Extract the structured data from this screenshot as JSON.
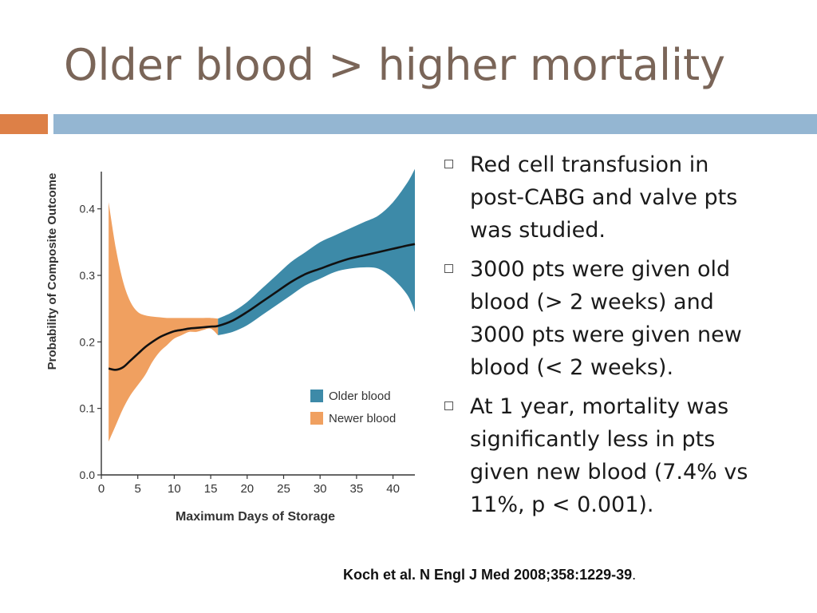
{
  "slide": {
    "title": "Older blood > higher mortality",
    "bullets": [
      "Red cell transfusion in post-CABG and valve pts was studied.",
      "3000 pts were given old blood (> 2 weeks) and 3000 pts were given new blood (< 2 weeks).",
      "At 1 year, mortality was significantly less in pts given new blood (7.4% vs 11%, p < 0.001)."
    ],
    "citation": "Koch et al. N Engl J Med 2008;358:1229-39",
    "citation_end": "."
  },
  "colors": {
    "title": "#7a6558",
    "accent_orange": "#dd8047",
    "accent_blue": "#94b6d2",
    "older_blood": "#3d8aa8",
    "newer_blood": "#f0a060"
  },
  "chart_data": {
    "type": "area",
    "xlabel": "Maximum Days of Storage",
    "ylabel": "Probability of Composite Outcome",
    "xlim": [
      0,
      43
    ],
    "ylim": [
      0,
      0.45
    ],
    "xticks": [
      0,
      5,
      10,
      15,
      20,
      25,
      30,
      35,
      40
    ],
    "yticks": [
      0.0,
      0.1,
      0.2,
      0.3,
      0.4
    ],
    "ytick_labels": [
      "0.0",
      "0.1",
      "0.2",
      "0.3",
      "0.4"
    ],
    "grid": false,
    "legend_position": "bottom-right",
    "series": [
      {
        "name": "Newer blood",
        "color": "#f0a060",
        "x": [
          1,
          2,
          3,
          4,
          5,
          6,
          7,
          8,
          9,
          10,
          11,
          12,
          13,
          14,
          15,
          16
        ],
        "lower": [
          0.05,
          0.075,
          0.1,
          0.12,
          0.135,
          0.15,
          0.17,
          0.185,
          0.195,
          0.205,
          0.21,
          0.215,
          0.215,
          0.218,
          0.22,
          0.21
        ],
        "upper": [
          0.41,
          0.34,
          0.29,
          0.26,
          0.245,
          0.24,
          0.238,
          0.237,
          0.236,
          0.236,
          0.236,
          0.236,
          0.236,
          0.236,
          0.236,
          0.235
        ]
      },
      {
        "name": "Older blood",
        "color": "#3d8aa8",
        "x": [
          16,
          18,
          20,
          22,
          24,
          26,
          28,
          30,
          32,
          34,
          36,
          38,
          40,
          42,
          43
        ],
        "lower": [
          0.21,
          0.215,
          0.225,
          0.24,
          0.255,
          0.27,
          0.285,
          0.295,
          0.305,
          0.31,
          0.312,
          0.31,
          0.295,
          0.27,
          0.245
        ],
        "upper": [
          0.235,
          0.245,
          0.26,
          0.28,
          0.3,
          0.32,
          0.335,
          0.35,
          0.36,
          0.37,
          0.38,
          0.39,
          0.41,
          0.44,
          0.46
        ]
      }
    ],
    "estimate_line": {
      "x": [
        1,
        2,
        3,
        4,
        5,
        6,
        7,
        8,
        9,
        10,
        11,
        12,
        13,
        14,
        15,
        16,
        18,
        20,
        22,
        24,
        26,
        28,
        30,
        32,
        34,
        36,
        38,
        40,
        42,
        43
      ],
      "y": [
        0.16,
        0.158,
        0.162,
        0.172,
        0.182,
        0.192,
        0.2,
        0.207,
        0.212,
        0.216,
        0.218,
        0.22,
        0.221,
        0.222,
        0.223,
        0.224,
        0.232,
        0.245,
        0.26,
        0.275,
        0.29,
        0.302,
        0.31,
        0.318,
        0.325,
        0.33,
        0.335,
        0.34,
        0.345,
        0.347
      ]
    }
  }
}
